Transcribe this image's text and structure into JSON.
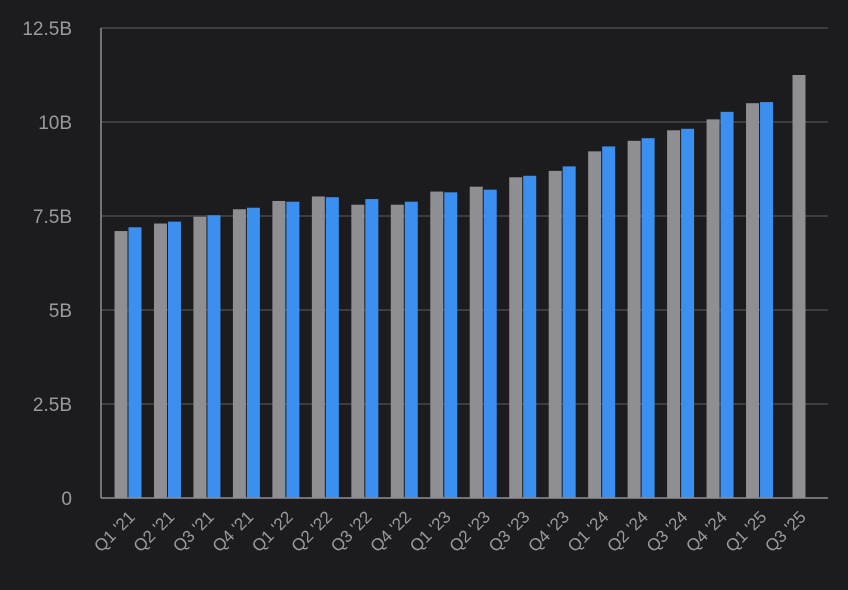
{
  "chart_data": {
    "type": "bar",
    "categories": [
      "Q1 '21",
      "Q2 '21",
      "Q3 '21",
      "Q4 '21",
      "Q1 '22",
      "Q2 '22",
      "Q3 '22",
      "Q4 '22",
      "Q1 '23",
      "Q2 '23",
      "Q3 '23",
      "Q4 '23",
      "Q1 '24",
      "Q2 '24",
      "Q3 '24",
      "Q4 '24",
      "Q1 '25",
      "Q3 '25"
    ],
    "series": [
      {
        "color": "#8e8e93",
        "values": [
          7.1,
          7.3,
          7.48,
          7.68,
          7.9,
          8.02,
          7.8,
          7.8,
          8.15,
          8.28,
          8.53,
          8.7,
          9.22,
          9.5,
          9.78,
          10.07,
          10.5,
          11.25
        ]
      },
      {
        "color": "#3a8ff0",
        "values": [
          7.2,
          7.35,
          7.52,
          7.72,
          7.88,
          8.0,
          7.95,
          7.88,
          8.13,
          8.2,
          8.57,
          8.82,
          9.35,
          9.57,
          9.82,
          10.27,
          10.53,
          null
        ]
      }
    ],
    "y_ticks": [
      "0",
      "2.5B",
      "5B",
      "7.5B",
      "10B",
      "12.5B"
    ],
    "y_tick_values": [
      0,
      2.5,
      5,
      7.5,
      10,
      12.5
    ],
    "ylim": [
      0,
      12.5
    ],
    "grid": true,
    "legend": "none",
    "title": "",
    "xlabel": "",
    "ylabel": ""
  },
  "colors": {
    "background": "#1c1c1e",
    "gridline": "#48484a",
    "axis": "#8e8e93",
    "tick_text": "#9a9aa0"
  }
}
